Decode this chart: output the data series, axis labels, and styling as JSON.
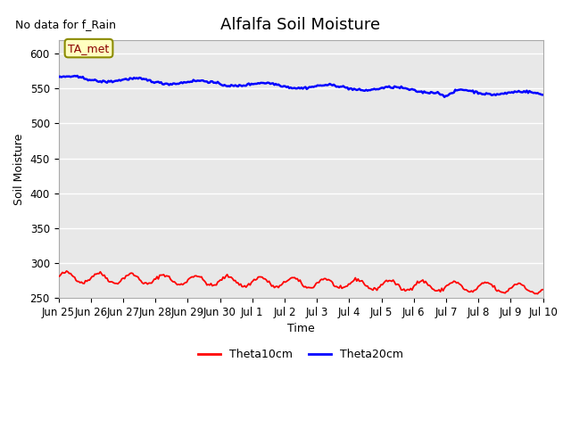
{
  "title": "Alfalfa Soil Moisture",
  "xlabel": "Time",
  "ylabel": "Soil Moisture",
  "top_left_text": "No data for f_Rain",
  "annotation_box_text": "TA_met",
  "ylim": [
    250,
    620
  ],
  "yticks": [
    250,
    300,
    350,
    400,
    450,
    500,
    550,
    600
  ],
  "xtick_labels": [
    "Jun 25",
    "Jun 26",
    "Jun 27",
    "Jun 28",
    "Jun 29",
    "Jun 30",
    "Jul 1",
    "Jul 2",
    "Jul 3",
    "Jul 4",
    "Jul 5",
    "Jul 6",
    "Jul 7",
    "Jul 8",
    "Jul 9",
    "Jul 10"
  ],
  "line_red_color": "#FF0000",
  "line_blue_color": "#0000FF",
  "legend_labels": [
    "Theta10cm",
    "Theta20cm"
  ],
  "plot_bg_color": "#E8E8E8",
  "fig_bg_color": "#FFFFFF",
  "grid_color": "#FFFFFF",
  "title_fontsize": 13,
  "axis_label_fontsize": 9,
  "tick_fontsize": 8.5,
  "annotation_fontsize": 9
}
